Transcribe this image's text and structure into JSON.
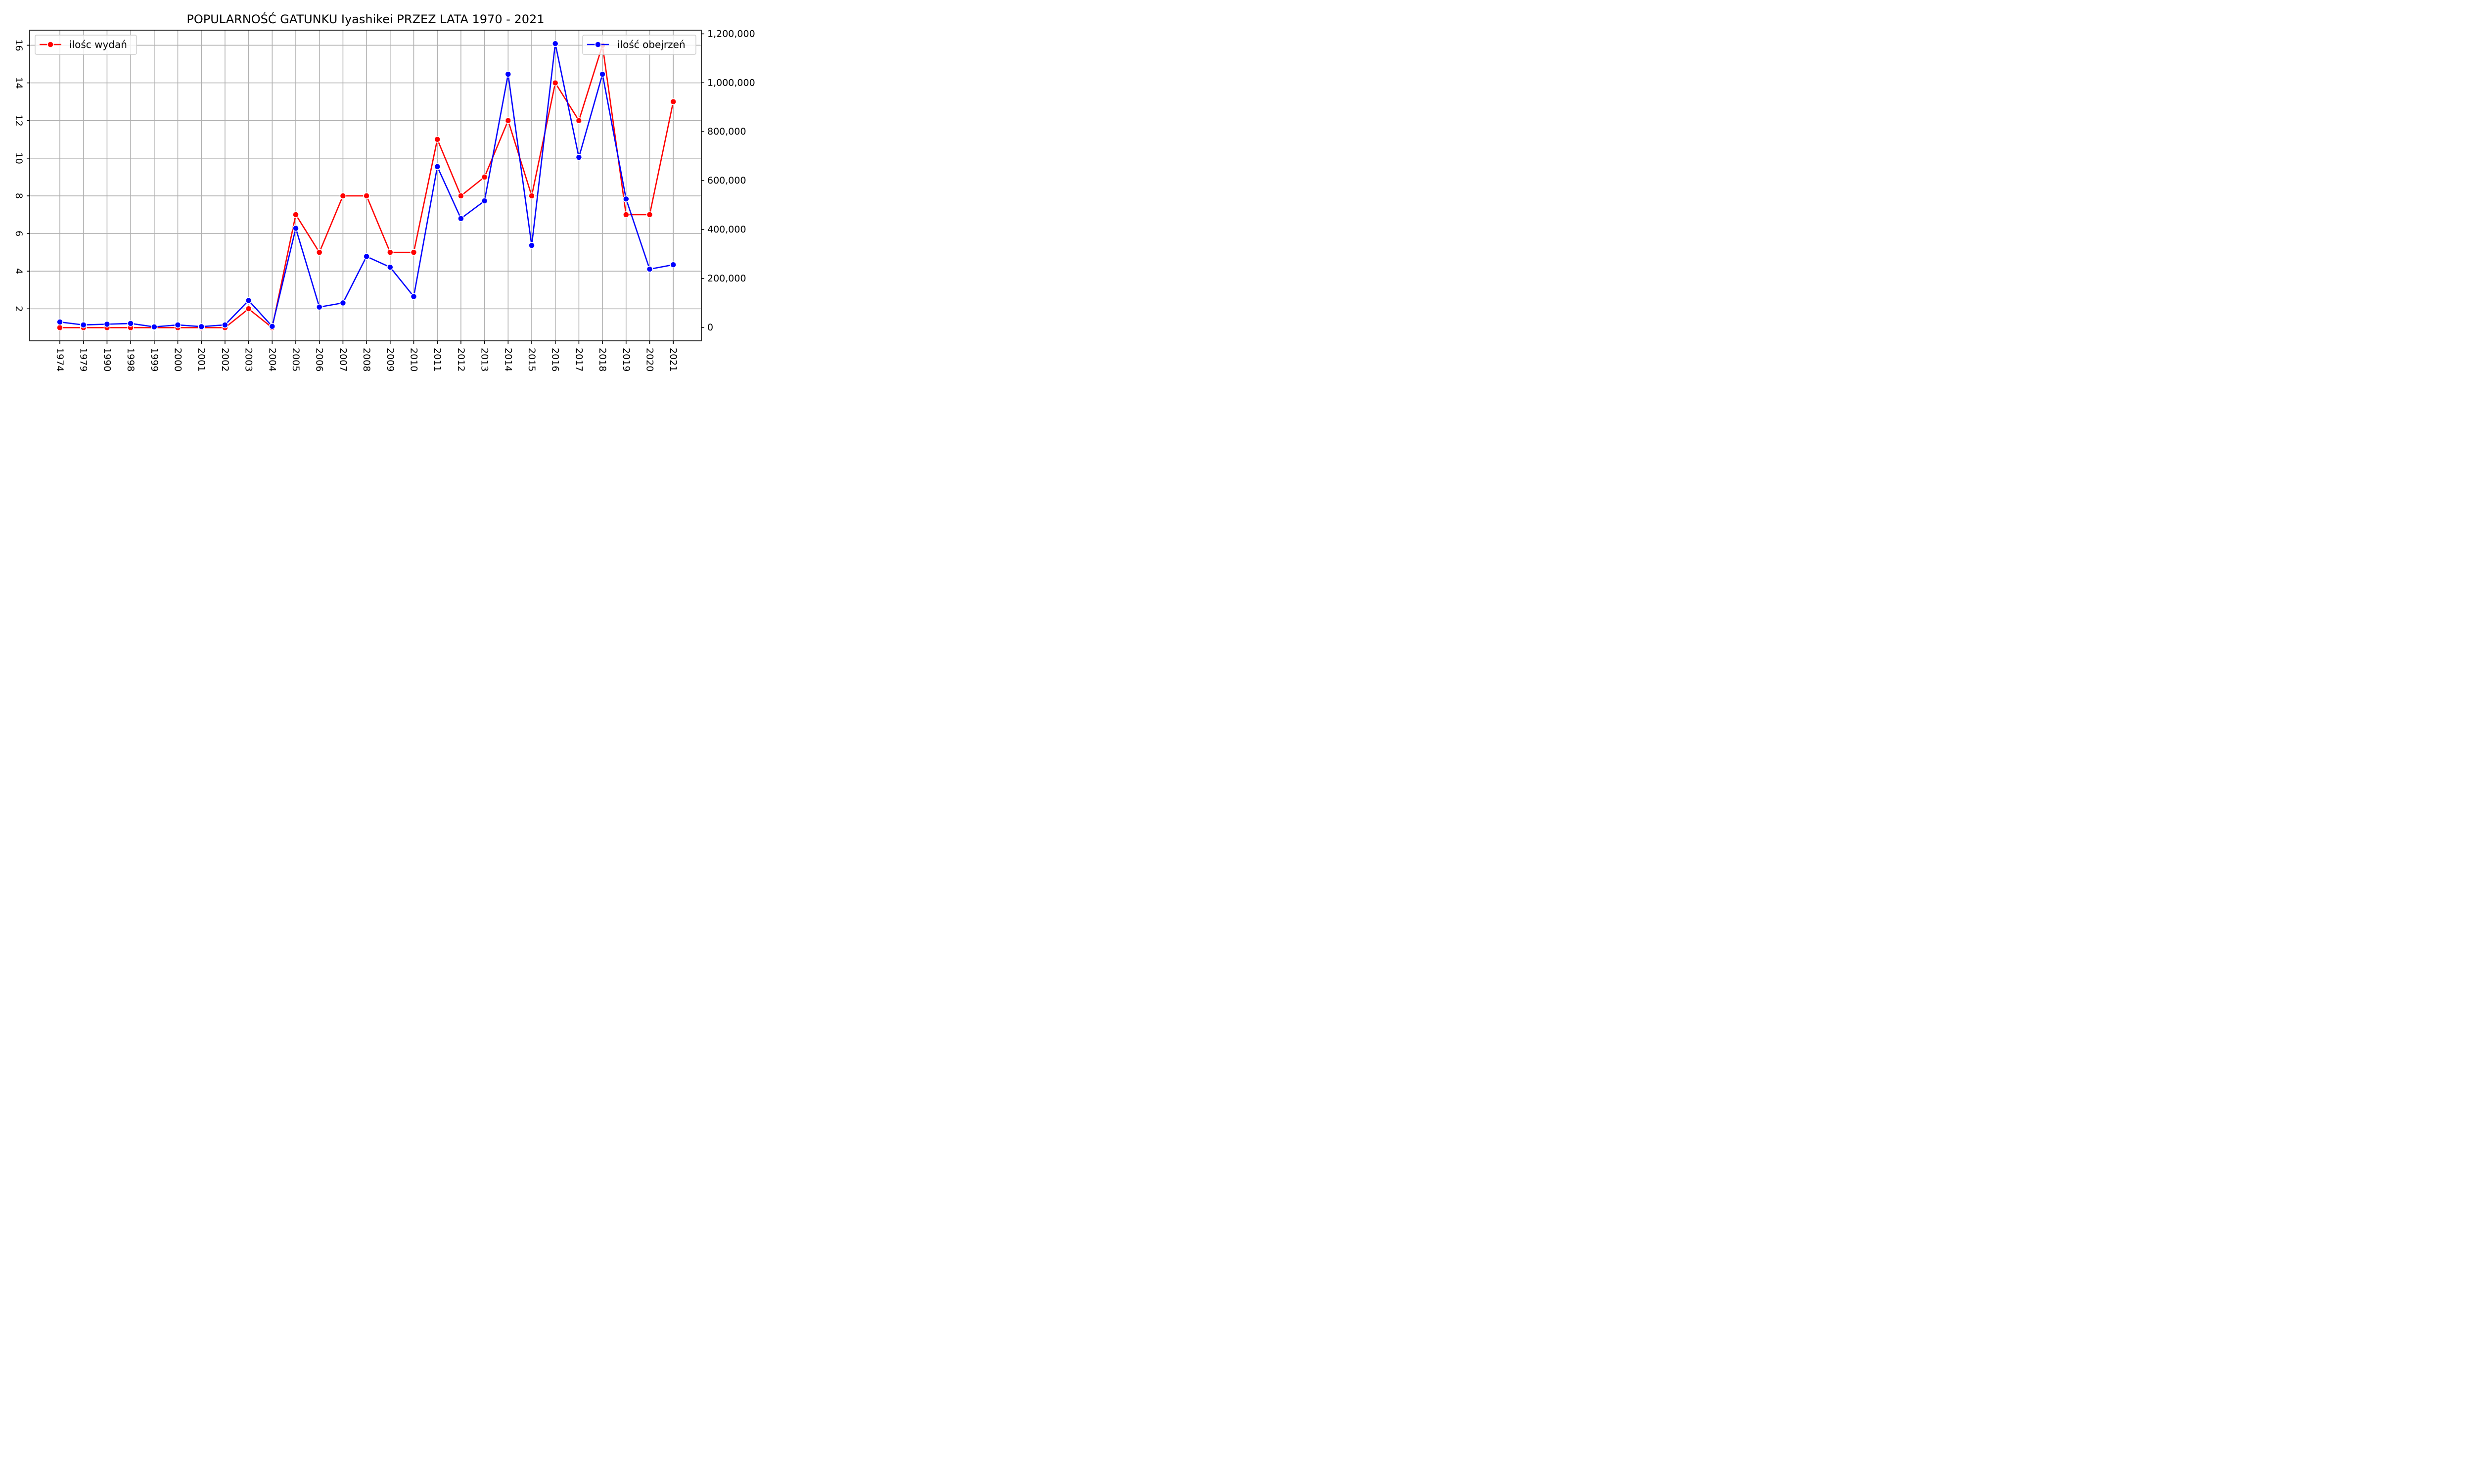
{
  "chart_data": {
    "type": "line",
    "title": "POPULARNOŚĆ GATUNKU Iyashikei PRZEZ LATA 1970 - 2021",
    "x": [
      "1974",
      "1979",
      "1990",
      "1998",
      "1999",
      "2000",
      "2001",
      "2002",
      "2003",
      "2004",
      "2005",
      "2006",
      "2007",
      "2008",
      "2009",
      "2010",
      "2011",
      "2012",
      "2013",
      "2014",
      "2015",
      "2016",
      "2017",
      "2018",
      "2019",
      "2020",
      "2021"
    ],
    "grid": true,
    "series": [
      {
        "name": "ilośc wydań",
        "axis": "left",
        "color": "#ff0000",
        "values": [
          1,
          1,
          1,
          1,
          1,
          1,
          1,
          1,
          2,
          1,
          7,
          5,
          8,
          8,
          5,
          5,
          11,
          8,
          9,
          12,
          8,
          14,
          12,
          16,
          7,
          7,
          13
        ]
      },
      {
        "name": "ilość obejrzeń",
        "axis": "right",
        "color": "#0000ff",
        "values": [
          22000,
          10000,
          13000,
          16000,
          2000,
          10000,
          3000,
          10000,
          110000,
          4000,
          405000,
          83000,
          100000,
          290000,
          246000,
          126000,
          657000,
          445000,
          517000,
          1035000,
          335000,
          1160000,
          695000,
          1035000,
          525000,
          238000,
          256000
        ]
      }
    ],
    "y_left": {
      "ylim": [
        0.3,
        16.8
      ],
      "ticks": [
        2,
        4,
        6,
        8,
        10,
        12,
        14,
        16
      ],
      "tick_labels": [
        "2",
        "4",
        "6",
        "8",
        "10",
        "12",
        "14",
        "16"
      ]
    },
    "y_right": {
      "ylim": [
        -55000,
        1215000
      ],
      "ticks": [
        0,
        200000,
        400000,
        600000,
        800000,
        1000000,
        1200000
      ],
      "tick_labels": [
        "0",
        "200,000",
        "400,000",
        "600,000",
        "800,000",
        "1,000,000",
        "1,200,000"
      ]
    },
    "legend_left": "top-left",
    "legend_right": "top-right"
  }
}
